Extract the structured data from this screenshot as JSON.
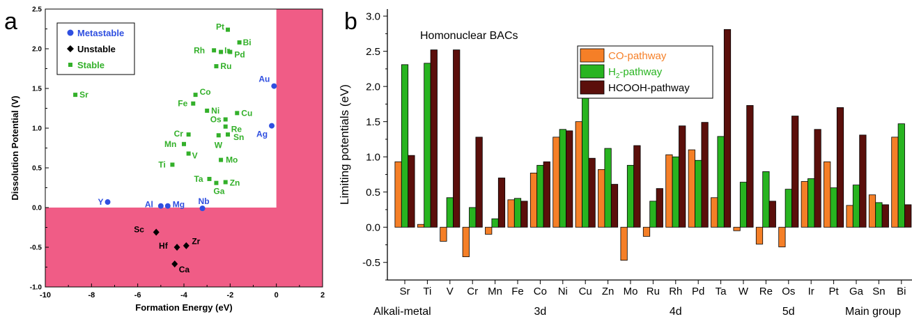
{
  "panel_a": {
    "letter": "a",
    "legend": [
      {
        "label": "Metastable",
        "marker": "circle",
        "color": "#2f4fe0"
      },
      {
        "label": "Unstable",
        "marker": "diamond",
        "color": "#000000"
      },
      {
        "label": "Stable",
        "marker": "square",
        "color": "#33b02a"
      }
    ]
  },
  "panel_b": {
    "letter": "b",
    "subtitle": "Homonuclear BACs",
    "group_labels": [
      {
        "label": "Alkali-metal",
        "from": 0,
        "to": 2
      },
      {
        "label": "3d",
        "from": 3,
        "to": 9
      },
      {
        "label": "4d",
        "from": 10,
        "to": 14
      },
      {
        "label": "5d",
        "from": 15,
        "to": 19
      },
      {
        "label": "Main group",
        "from": 20,
        "to": 22
      }
    ]
  },
  "colors": {
    "unstable_region": "#f05c86",
    "metastable": "#2f4fe0",
    "stable": "#33b02a",
    "unstable": "#000000",
    "co": "#f57f27",
    "h2": "#28b420",
    "hcooh": "#5b0f0b"
  },
  "chart_data": [
    {
      "type": "scatter",
      "title": "",
      "xlabel": "Formation Energy (eV)",
      "ylabel": "Dissolution Potential (V)",
      "xlim": [
        -10,
        2
      ],
      "ylim": [
        -1.0,
        2.5
      ],
      "xticks": [
        "-10",
        "-8",
        "-6",
        "-4",
        "-2",
        "0",
        "2"
      ],
      "yticks": [
        "-1.0",
        "-0.5",
        "0.0",
        "0.5",
        "1.0",
        "1.5",
        "2.0",
        "2.5"
      ],
      "grid": false,
      "legend_position": "top-left",
      "shaded_regions": [
        "x > 0",
        "y < 0"
      ],
      "series": [
        {
          "name": "Metastable",
          "points": [
            {
              "label": "Au",
              "x": -0.1,
              "y": 1.53
            },
            {
              "label": "Ag",
              "x": -0.2,
              "y": 1.03
            },
            {
              "label": "Y",
              "x": -7.3,
              "y": 0.07
            },
            {
              "label": "Al",
              "x": -5.0,
              "y": 0.02
            },
            {
              "label": "Mg",
              "x": -4.7,
              "y": 0.02
            },
            {
              "label": "Nb",
              "x": -3.2,
              "y": -0.01
            }
          ]
        },
        {
          "name": "Unstable",
          "points": [
            {
              "label": "Sc",
              "x": -5.2,
              "y": -0.31
            },
            {
              "label": "Hf",
              "x": -4.3,
              "y": -0.5
            },
            {
              "label": "Zr",
              "x": -3.9,
              "y": -0.48
            },
            {
              "label": "Ca",
              "x": -4.4,
              "y": -0.71
            }
          ]
        },
        {
          "name": "Stable",
          "points": [
            {
              "label": "Pt",
              "x": -2.1,
              "y": 2.24
            },
            {
              "label": "Bi",
              "x": -1.6,
              "y": 2.08
            },
            {
              "label": "Ir",
              "x": -2.4,
              "y": 1.96
            },
            {
              "label": "Rh",
              "x": -2.7,
              "y": 1.98
            },
            {
              "label": "Pd",
              "x": -2.0,
              "y": 1.96
            },
            {
              "label": "Ru",
              "x": -2.6,
              "y": 1.78
            },
            {
              "label": "Sr",
              "x": -8.7,
              "y": 1.42
            },
            {
              "label": "Co",
              "x": -3.5,
              "y": 1.42
            },
            {
              "label": "Fe",
              "x": -3.6,
              "y": 1.31
            },
            {
              "label": "Ni",
              "x": -3.0,
              "y": 1.22
            },
            {
              "label": "Cu",
              "x": -1.7,
              "y": 1.19
            },
            {
              "label": "Os",
              "x": -2.2,
              "y": 1.11
            },
            {
              "label": "Re",
              "x": -2.2,
              "y": 1.02
            },
            {
              "label": "Cr",
              "x": -3.8,
              "y": 0.92
            },
            {
              "label": "Sn",
              "x": -2.1,
              "y": 0.92
            },
            {
              "label": "W",
              "x": -2.5,
              "y": 0.91
            },
            {
              "label": "Mn",
              "x": -4.0,
              "y": 0.8
            },
            {
              "label": "V",
              "x": -3.8,
              "y": 0.68
            },
            {
              "label": "Mo",
              "x": -2.4,
              "y": 0.6
            },
            {
              "label": "Ti",
              "x": -4.5,
              "y": 0.54
            },
            {
              "label": "Ta",
              "x": -2.9,
              "y": 0.36
            },
            {
              "label": "Zn",
              "x": -2.2,
              "y": 0.32
            },
            {
              "label": "Ga",
              "x": -2.6,
              "y": 0.31
            }
          ]
        }
      ]
    },
    {
      "type": "bar",
      "title": "Homonuclear BACs",
      "xlabel": "",
      "ylabel": "Limiting potentials (eV)",
      "ylim": [
        -0.75,
        3.1
      ],
      "yticks": [
        "-0.5",
        "0.0",
        "0.5",
        "1.0",
        "1.5",
        "2.0",
        "2.5",
        "3.0"
      ],
      "grid": false,
      "legend_position": "top-center",
      "categories": [
        "Sr",
        "Ti",
        "V",
        "Cr",
        "Mn",
        "Fe",
        "Co",
        "Ni",
        "Cu",
        "Zn",
        "Mo",
        "Ru",
        "Rh",
        "Pd",
        "Ta",
        "W",
        "Re",
        "Os",
        "Ir",
        "Pt",
        "Ga",
        "Sn",
        "Bi"
      ],
      "series": [
        {
          "name": "CO-pathway",
          "legend_main": "CO-pathway",
          "legend_sub": "",
          "legend_tail": "",
          "values": [
            0.93,
            0.04,
            -0.2,
            -0.42,
            -0.1,
            0.39,
            0.77,
            1.28,
            1.5,
            0.82,
            -0.47,
            -0.13,
            1.03,
            1.1,
            0.42,
            -0.05,
            -0.24,
            -0.28,
            0.65,
            0.93,
            0.31,
            0.46,
            1.28
          ]
        },
        {
          "name": "H2-pathway",
          "legend_main": "H",
          "legend_sub": "2",
          "legend_tail": "-pathway",
          "values": [
            2.31,
            2.33,
            0.42,
            0.28,
            0.12,
            0.41,
            0.88,
            1.39,
            1.86,
            1.12,
            0.88,
            0.37,
            1.0,
            0.95,
            1.29,
            0.64,
            0.79,
            0.54,
            0.69,
            0.56,
            0.6,
            0.35,
            1.47
          ]
        },
        {
          "name": "HCOOH-pathway",
          "legend_main": "HCOOH-pathway",
          "legend_sub": "",
          "legend_tail": "",
          "values": [
            1.02,
            2.52,
            2.52,
            1.28,
            0.7,
            0.37,
            0.93,
            1.37,
            0.98,
            0.61,
            1.16,
            0.55,
            1.44,
            1.49,
            2.81,
            1.73,
            0.37,
            1.58,
            1.39,
            1.7,
            1.31,
            0.32,
            0.32
          ]
        }
      ]
    }
  ]
}
